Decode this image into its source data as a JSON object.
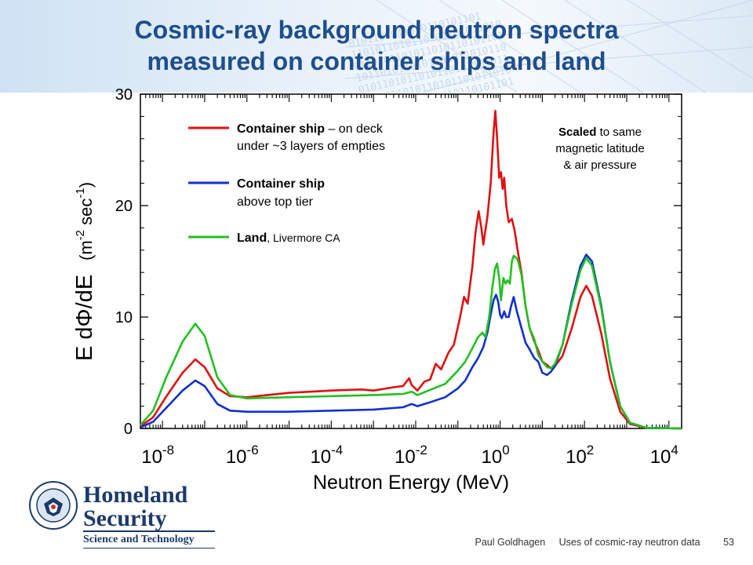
{
  "slide": {
    "title_line1": "Cosmic-ray background neutron spectra",
    "title_line2": "measured on container ships and land",
    "author": "Paul Goldhagen",
    "talk": "Uses of cosmic-ray neutron data",
    "page": "53"
  },
  "logo": {
    "org_line1": "Homeland",
    "org_line2": "Security",
    "division": "Science and Technology",
    "seal_text": "U.S. DEPARTMENT OF HOMELAND SECURITY"
  },
  "colors": {
    "title": "#1f4e8c",
    "ship_deck": "#e01010",
    "ship_top": "#1030d0",
    "land": "#22c020"
  },
  "chart_data": {
    "type": "line",
    "xscale": "log",
    "xlim": [
      3e-09,
      20000.0
    ],
    "ylim": [
      0,
      30
    ],
    "yticks": [
      0,
      10,
      20,
      30
    ],
    "xtick_base": "10",
    "xtick_exponents": [
      "-8",
      "-6",
      "-4",
      "-2",
      "0",
      "2",
      "4"
    ],
    "xlabel": "Neutron Energy  (MeV)",
    "ylabel_main": "E dΦ/dE",
    "ylabel_unit_open": "(m",
    "ylabel_exp1": "-2",
    "ylabel_mid": " sec",
    "ylabel_exp2": "-1",
    "ylabel_unit_close": ")",
    "legend": [
      {
        "bold": "Container ship",
        "rest": " – on deck",
        "line2": "under ~3 layers of empties",
        "color": "#e01010"
      },
      {
        "bold": "Container ship",
        "rest": "",
        "line2": "above top tier",
        "color": "#1030d0"
      },
      {
        "bold": "Land",
        "rest": ", Livermore CA",
        "line2": "",
        "color": "#22c020"
      }
    ],
    "note_bold": "Scaled",
    "note_line1": " to same",
    "note_line2": "magnetic latitude",
    "note_line3": "& air pressure",
    "series": [
      {
        "name": "Container ship – on deck",
        "color": "#e01010",
        "points": [
          [
            3e-09,
            0.2
          ],
          [
            6e-09,
            1.0
          ],
          [
            1.2e-08,
            2.8
          ],
          [
            3e-08,
            5.0
          ],
          [
            6e-08,
            6.2
          ],
          [
            1e-07,
            5.5
          ],
          [
            2e-07,
            3.6
          ],
          [
            4e-07,
            2.9
          ],
          [
            1e-06,
            2.8
          ],
          [
            1e-05,
            3.2
          ],
          [
            0.0001,
            3.4
          ],
          [
            0.0005,
            3.5
          ],
          [
            0.001,
            3.4
          ],
          [
            0.003,
            3.7
          ],
          [
            0.005,
            3.8
          ],
          [
            0.007,
            4.5
          ],
          [
            0.008,
            3.9
          ],
          [
            0.011,
            3.4
          ],
          [
            0.016,
            4.2
          ],
          [
            0.022,
            4.4
          ],
          [
            0.03,
            5.8
          ],
          [
            0.04,
            5.3
          ],
          [
            0.06,
            6.8
          ],
          [
            0.08,
            7.5
          ],
          [
            0.11,
            9.8
          ],
          [
            0.14,
            11.8
          ],
          [
            0.17,
            11.2
          ],
          [
            0.22,
            14.5
          ],
          [
            0.26,
            17.5
          ],
          [
            0.31,
            19.5
          ],
          [
            0.36,
            18.0
          ],
          [
            0.4,
            16.5
          ],
          [
            0.5,
            19.0
          ],
          [
            0.6,
            22.0
          ],
          [
            0.7,
            26.5
          ],
          [
            0.77,
            28.5
          ],
          [
            0.85,
            26.0
          ],
          [
            0.95,
            22.5
          ],
          [
            1.05,
            23.0
          ],
          [
            1.15,
            21.5
          ],
          [
            1.25,
            22.5
          ],
          [
            1.4,
            20.0
          ],
          [
            1.6,
            18.5
          ],
          [
            1.9,
            18.8
          ],
          [
            2.2,
            17.8
          ],
          [
            2.6,
            16.0
          ],
          [
            3.2,
            14.0
          ],
          [
            4,
            11.0
          ],
          [
            5,
            9.0
          ],
          [
            6.5,
            7.8
          ],
          [
            8,
            7.0
          ],
          [
            10.0,
            6.0
          ],
          [
            13.0,
            5.7
          ],
          [
            16.0,
            5.4
          ],
          [
            20.0,
            5.6
          ],
          [
            30.0,
            6.5
          ],
          [
            50.0,
            9.0
          ],
          [
            80.0,
            11.8
          ],
          [
            110.0,
            12.8
          ],
          [
            150.0,
            11.9
          ],
          [
            250.0,
            8.5
          ],
          [
            400.0,
            4.5
          ],
          [
            700.0,
            1.5
          ],
          [
            1200.0,
            0.4
          ],
          [
            3000.0,
            0.05
          ],
          [
            20000.0,
            0.0
          ]
        ]
      },
      {
        "name": "Container ship above top tier",
        "color": "#1030d0",
        "points": [
          [
            3e-09,
            0.1
          ],
          [
            6e-09,
            0.6
          ],
          [
            1.2e-08,
            1.8
          ],
          [
            3e-08,
            3.4
          ],
          [
            6e-08,
            4.3
          ],
          [
            1e-07,
            3.8
          ],
          [
            2e-07,
            2.2
          ],
          [
            4e-07,
            1.6
          ],
          [
            1e-06,
            1.5
          ],
          [
            1e-05,
            1.5
          ],
          [
            0.0001,
            1.6
          ],
          [
            0.001,
            1.7
          ],
          [
            0.005,
            1.9
          ],
          [
            0.008,
            2.2
          ],
          [
            0.011,
            2.0
          ],
          [
            0.02,
            2.3
          ],
          [
            0.05,
            2.8
          ],
          [
            0.1,
            3.6
          ],
          [
            0.15,
            4.3
          ],
          [
            0.22,
            5.5
          ],
          [
            0.3,
            6.3
          ],
          [
            0.4,
            7.3
          ],
          [
            0.5,
            8.6
          ],
          [
            0.6,
            10.2
          ],
          [
            0.7,
            11.5
          ],
          [
            0.8,
            12.0
          ],
          [
            0.9,
            11.4
          ],
          [
            1.0,
            10.2
          ],
          [
            1.1,
            9.9
          ],
          [
            1.25,
            10.5
          ],
          [
            1.4,
            10.0
          ],
          [
            1.6,
            10.0
          ],
          [
            1.8,
            10.9
          ],
          [
            2.1,
            11.8
          ],
          [
            2.5,
            10.5
          ],
          [
            3,
            9.4
          ],
          [
            4,
            7.7
          ],
          [
            5,
            7.1
          ],
          [
            6.5,
            6.3
          ],
          [
            8,
            6.0
          ],
          [
            10.0,
            5.0
          ],
          [
            13.0,
            4.8
          ],
          [
            16.0,
            5.1
          ],
          [
            20.0,
            5.6
          ],
          [
            30.0,
            7.5
          ],
          [
            50.0,
            11.5
          ],
          [
            80.0,
            14.6
          ],
          [
            110.0,
            15.6
          ],
          [
            150.0,
            15.0
          ],
          [
            250.0,
            11.0
          ],
          [
            400.0,
            6.0
          ],
          [
            700.0,
            2.0
          ],
          [
            1200.0,
            0.5
          ],
          [
            3000.0,
            0.05
          ],
          [
            20000.0,
            0.0
          ]
        ]
      },
      {
        "name": "Land, Livermore CA",
        "color": "#22c020",
        "points": [
          [
            3e-09,
            0.3
          ],
          [
            6e-09,
            1.6
          ],
          [
            1.2e-08,
            4.5
          ],
          [
            3e-08,
            7.8
          ],
          [
            6e-08,
            9.4
          ],
          [
            1e-07,
            8.3
          ],
          [
            2e-07,
            4.6
          ],
          [
            4e-07,
            3.0
          ],
          [
            1e-06,
            2.7
          ],
          [
            1e-05,
            2.8
          ],
          [
            0.0001,
            2.9
          ],
          [
            0.001,
            3.0
          ],
          [
            0.005,
            3.1
          ],
          [
            0.008,
            3.3
          ],
          [
            0.011,
            3.0
          ],
          [
            0.02,
            3.4
          ],
          [
            0.05,
            4.0
          ],
          [
            0.1,
            5.2
          ],
          [
            0.15,
            6.0
          ],
          [
            0.22,
            7.2
          ],
          [
            0.3,
            8.2
          ],
          [
            0.38,
            8.6
          ],
          [
            0.45,
            8.2
          ],
          [
            0.55,
            10.0
          ],
          [
            0.65,
            12.5
          ],
          [
            0.75,
            14.3
          ],
          [
            0.85,
            14.8
          ],
          [
            0.95,
            13.5
          ],
          [
            1.05,
            11.5
          ],
          [
            1.2,
            13.5
          ],
          [
            1.35,
            13.0
          ],
          [
            1.5,
            13.3
          ],
          [
            1.7,
            13.0
          ],
          [
            1.9,
            15.0
          ],
          [
            2.1,
            15.5
          ],
          [
            2.6,
            15.2
          ],
          [
            3.2,
            13.8
          ],
          [
            4,
            11.0
          ],
          [
            5,
            9.0
          ],
          [
            6.5,
            8.0
          ],
          [
            8,
            6.6
          ],
          [
            10.0,
            6.0
          ],
          [
            13.0,
            5.5
          ],
          [
            16.0,
            5.4
          ],
          [
            20.0,
            5.8
          ],
          [
            30.0,
            7.5
          ],
          [
            50.0,
            11.2
          ],
          [
            80.0,
            14.2
          ],
          [
            110.0,
            15.3
          ],
          [
            150.0,
            14.6
          ],
          [
            250.0,
            10.8
          ],
          [
            400.0,
            6.0
          ],
          [
            700.0,
            2.0
          ],
          [
            1200.0,
            0.5
          ],
          [
            3000.0,
            0.05
          ],
          [
            20000.0,
            0.0
          ]
        ]
      }
    ]
  }
}
